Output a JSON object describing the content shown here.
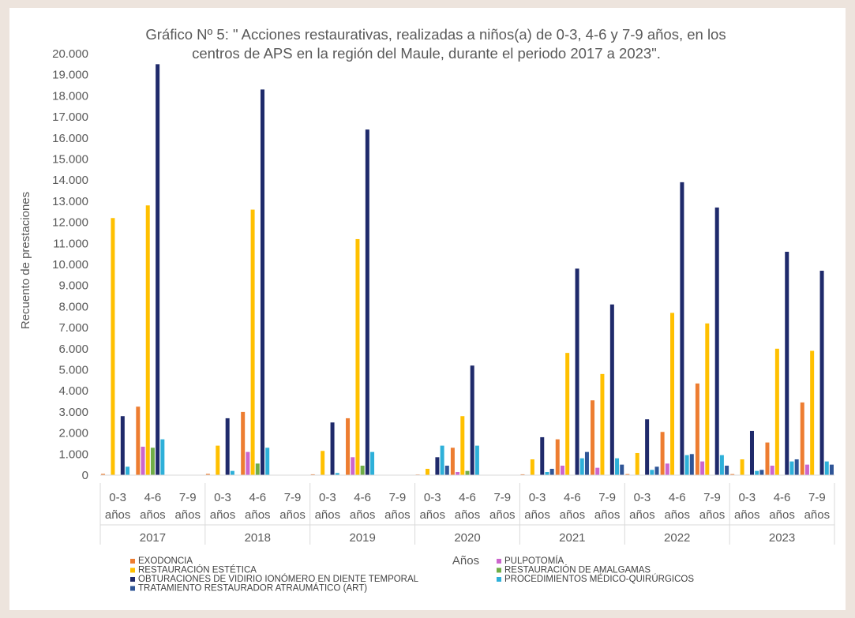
{
  "chart_data": {
    "type": "bar",
    "title_lines": [
      "Gráfico Nº 5: \" Acciones restaurativas, realizadas a niños(a) de 0-3, 4-6 y 7-9 años, en los",
      "centros de APS en la región del Maule, durante el periodo 2017 a 2023\"."
    ],
    "xlabel": "Años",
    "ylabel": "Recuento de prestaciones",
    "ylim": [
      0,
      20000
    ],
    "yticks": [
      "0",
      "1.000",
      "2.000",
      "3.000",
      "4.000",
      "5.000",
      "6.000",
      "7.000",
      "8.000",
      "9.000",
      "10.000",
      "11.000",
      "12.000",
      "13.000",
      "14.000",
      "15.000",
      "16.000",
      "17.000",
      "18.000",
      "19.000",
      "20.000"
    ],
    "groups": [
      {
        "year": "2017",
        "categories": [
          [
            "0-3",
            "años"
          ],
          [
            "4-6",
            "años"
          ],
          [
            "7-9",
            "años"
          ]
        ]
      },
      {
        "year": "2018",
        "categories": [
          [
            "0-3",
            "años"
          ],
          [
            "4-6",
            "años"
          ],
          [
            "7-9",
            "años"
          ]
        ]
      },
      {
        "year": "2019",
        "categories": [
          [
            "0-3",
            "años"
          ],
          [
            "4-6",
            "años"
          ],
          [
            "7-9",
            "años"
          ]
        ]
      },
      {
        "year": "2020",
        "categories": [
          [
            "0-3",
            "años"
          ],
          [
            "4-6",
            "años"
          ],
          [
            "7-9",
            "años"
          ]
        ]
      },
      {
        "year": "2021",
        "categories": [
          [
            "0-3",
            "años"
          ],
          [
            "4-6",
            "años"
          ],
          [
            "7-9",
            "años"
          ]
        ]
      },
      {
        "year": "2022",
        "categories": [
          [
            "0-3",
            "años"
          ],
          [
            "4-6",
            "años"
          ],
          [
            "7-9",
            "años"
          ]
        ]
      },
      {
        "year": "2023",
        "categories": [
          [
            "0-3",
            "años"
          ],
          [
            "4-6",
            "años"
          ],
          [
            "7-9",
            "años"
          ]
        ]
      }
    ],
    "series": [
      {
        "name": "EXODONCIA",
        "color": "#ed7d31",
        "values": [
          60,
          3250,
          0,
          60,
          3000,
          0,
          40,
          2700,
          0,
          30,
          1300,
          0,
          40,
          1700,
          3550,
          50,
          2050,
          4350,
          50,
          1550,
          3450
        ]
      },
      {
        "name": "PULPOTOMÍA",
        "color": "#cc66cc",
        "values": [
          0,
          1350,
          0,
          0,
          1100,
          0,
          0,
          850,
          0,
          0,
          150,
          0,
          0,
          450,
          350,
          0,
          550,
          650,
          0,
          450,
          500
        ]
      },
      {
        "name": "RESTAURACIÓN ESTÉTICA",
        "color": "#ffc000",
        "values": [
          12200,
          12800,
          0,
          1400,
          12600,
          0,
          1150,
          11200,
          0,
          300,
          2800,
          0,
          750,
          5800,
          4800,
          1050,
          7700,
          7200,
          750,
          6000,
          5900
        ]
      },
      {
        "name": "RESTAURACIÓN DE AMALGAMAS",
        "color": "#70ad47",
        "values": [
          0,
          1300,
          0,
          0,
          550,
          0,
          0,
          450,
          0,
          0,
          200,
          0,
          0,
          0,
          0,
          0,
          0,
          0,
          0,
          0,
          0
        ]
      },
      {
        "name": "OBTURACIONES DE VIDIRIO IONÓMERO EN DIENTE TEMPORAL",
        "color": "#1f2a6b",
        "values": [
          2800,
          19500,
          0,
          2700,
          18300,
          0,
          2500,
          16400,
          0,
          850,
          5200,
          0,
          1800,
          9800,
          8100,
          2650,
          13900,
          12700,
          2100,
          10600,
          9700
        ]
      },
      {
        "name": "PROCEDIMIENTOS MÉDICO-QUIRÚRGICOS",
        "color": "#2eb0d9",
        "values": [
          400,
          1700,
          0,
          200,
          1300,
          0,
          100,
          1100,
          0,
          1400,
          1400,
          0,
          150,
          800,
          800,
          250,
          950,
          950,
          200,
          650,
          650
        ]
      },
      {
        "name": "TRATAMIENTO RESTAURADOR ATRAUMÁTICO (ART)",
        "color": "#2f5597",
        "values": [
          0,
          0,
          0,
          0,
          0,
          0,
          0,
          0,
          0,
          450,
          0,
          0,
          300,
          1100,
          500,
          400,
          1000,
          450,
          250,
          750,
          500
        ]
      }
    ],
    "legend_position": "bottom",
    "grid": false
  }
}
